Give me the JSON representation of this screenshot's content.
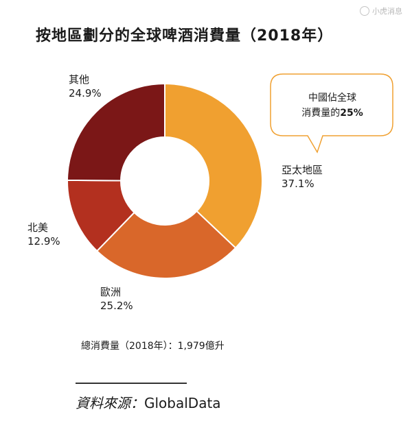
{
  "watermark": "小虎消息",
  "chart_data": {
    "type": "pie",
    "title": "按地區劃分的全球啤酒消費量（2018年）",
    "donut": true,
    "slices": [
      {
        "name": "亞太地區",
        "value": 37.1,
        "label": "37.1%",
        "color": "#F0A030"
      },
      {
        "name": "歐洲",
        "value": 25.2,
        "label": "25.2%",
        "color": "#D9672A"
      },
      {
        "name": "北美",
        "value": 12.9,
        "label": "12.9%",
        "color": "#B3301F"
      },
      {
        "name": "其他",
        "value": 24.9,
        "label": "24.9%",
        "color": "#7B1717"
      }
    ],
    "annotation": {
      "line1": "中國佔全球",
      "line2_prefix": "消費量的",
      "line2_value": "25%"
    },
    "total_note": "總消費量（2018年）：1,979億升",
    "source_label": "資料來源：",
    "source_value": "GlobalData"
  }
}
